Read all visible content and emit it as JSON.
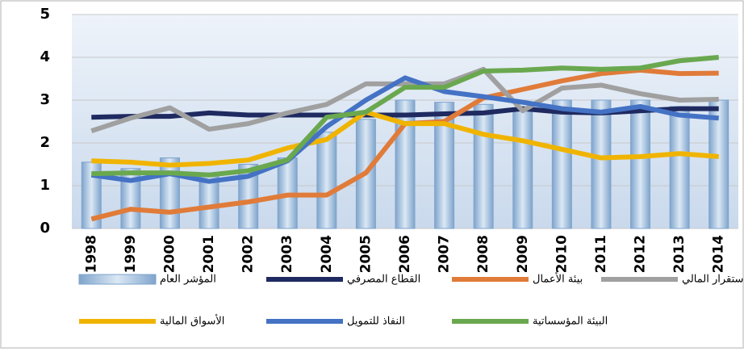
{
  "chart_data": {
    "type": "bar",
    "categories": [
      "1998",
      "1999",
      "2000",
      "2001",
      "2002",
      "2003",
      "2004",
      "2005",
      "2006",
      "2007",
      "2008",
      "2009",
      "2010",
      "2011",
      "2012",
      "2013",
      "2014"
    ],
    "series": [
      {
        "name": "المؤشر العام",
        "type": "bar",
        "color": "#a9c6e3",
        "values": [
          1.55,
          1.4,
          1.65,
          1.3,
          1.5,
          1.65,
          2.25,
          2.55,
          3.0,
          2.95,
          2.9,
          2.75,
          3.0,
          3.0,
          3.0,
          2.85,
          3.0
        ]
      },
      {
        "name": "القطاع المصرفي",
        "type": "line",
        "color": "#1f2a60",
        "values": [
          2.6,
          2.62,
          2.62,
          2.7,
          2.65,
          2.65,
          2.65,
          2.65,
          2.65,
          2.68,
          2.7,
          2.8,
          2.72,
          2.7,
          2.75,
          2.8,
          2.8
        ]
      },
      {
        "name": "بيئة الأعمال",
        "type": "line",
        "color": "#e07b39",
        "values": [
          0.22,
          0.45,
          0.38,
          0.5,
          0.62,
          0.78,
          0.78,
          1.3,
          2.45,
          2.5,
          3.05,
          3.25,
          3.45,
          3.62,
          3.7,
          3.62,
          3.63
        ]
      },
      {
        "name": "الاستقرار المالي",
        "type": "line",
        "color": "#a0a0a0",
        "values": [
          2.28,
          2.58,
          2.82,
          2.32,
          2.45,
          2.7,
          2.9,
          3.38,
          3.38,
          3.38,
          3.72,
          2.75,
          3.28,
          3.35,
          3.15,
          3.0,
          3.02
        ]
      },
      {
        "name": "الأسواق المالية",
        "type": "line",
        "color": "#f0b400",
        "values": [
          1.58,
          1.55,
          1.48,
          1.52,
          1.6,
          1.88,
          2.08,
          2.72,
          2.45,
          2.45,
          2.2,
          2.05,
          1.85,
          1.65,
          1.68,
          1.75,
          1.68
        ]
      },
      {
        "name": "النفاذ للتمويل",
        "type": "line",
        "color": "#4472c4",
        "values": [
          1.25,
          1.12,
          1.28,
          1.1,
          1.22,
          1.58,
          2.38,
          3.0,
          3.52,
          3.2,
          3.08,
          2.95,
          2.8,
          2.72,
          2.85,
          2.65,
          2.58
        ]
      },
      {
        "name": "البيئة المؤسساتية",
        "type": "line",
        "color": "#6aa84f",
        "values": [
          1.28,
          1.3,
          1.3,
          1.25,
          1.35,
          1.6,
          2.6,
          2.72,
          3.3,
          3.3,
          3.68,
          3.7,
          3.75,
          3.72,
          3.75,
          3.92,
          4.0
        ]
      }
    ],
    "ylim": [
      0,
      5
    ],
    "yticks": [
      0,
      1,
      2,
      3,
      4,
      5
    ],
    "grid": true
  }
}
